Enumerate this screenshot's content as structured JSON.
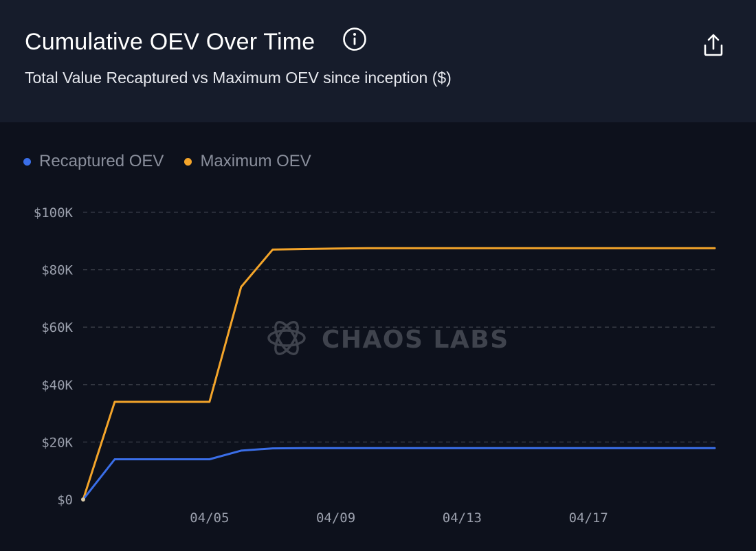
{
  "header": {
    "title": "Cumulative OEV Over Time",
    "subtitle": "Total Value Recaptured vs Maximum OEV since inception ($)"
  },
  "icons": {
    "info": "info-icon",
    "share": "share-icon",
    "watermark_logo": "chaos-labs-logo-icon"
  },
  "watermark": "CHAOS LABS",
  "colors": {
    "recaptured": "#3a6ee8",
    "maximum": "#f4a52a",
    "grid": "#3a3e48",
    "header_bg": "#161c2b",
    "plot_bg": "#0d111c"
  },
  "chart_data": {
    "type": "line",
    "title": "Cumulative OEV Over Time",
    "subtitle": "Total Value Recaptured vs Maximum OEV since inception ($)",
    "xlabel": "",
    "ylabel": "",
    "x_tick_labels": [
      "04/05",
      "04/09",
      "04/13",
      "04/17"
    ],
    "y_tick_labels": [
      "$0",
      "$20K",
      "$40K",
      "$60K",
      "$80K",
      "$100K"
    ],
    "ylim": [
      0,
      100000
    ],
    "grid": "horizontal dashed",
    "legend_position": "top-left",
    "x": [
      "04/01",
      "04/02",
      "04/03",
      "04/04",
      "04/05",
      "04/06",
      "04/07",
      "04/08",
      "04/09",
      "04/10",
      "04/11",
      "04/12",
      "04/13",
      "04/14",
      "04/15",
      "04/16",
      "04/17",
      "04/18",
      "04/19",
      "04/20",
      "04/21"
    ],
    "series": [
      {
        "name": "Recaptured OEV",
        "color": "#3a6ee8",
        "values": [
          0,
          14000,
          14000,
          14000,
          14000,
          17000,
          17800,
          17900,
          17900,
          17900,
          17900,
          17900,
          17900,
          17900,
          17900,
          17900,
          17900,
          17900,
          17900,
          17900,
          17900
        ]
      },
      {
        "name": "Maximum OEV",
        "color": "#f4a52a",
        "values": [
          0,
          34000,
          34000,
          34000,
          34000,
          74000,
          87000,
          87200,
          87400,
          87500,
          87500,
          87500,
          87500,
          87500,
          87500,
          87500,
          87500,
          87500,
          87500,
          87500,
          87500
        ]
      }
    ]
  }
}
